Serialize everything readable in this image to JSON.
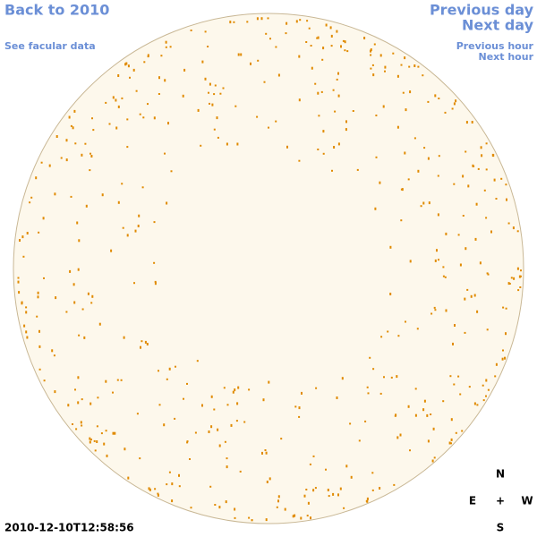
{
  "links": {
    "back": "Back to 2010",
    "facular": "See facular data",
    "previous_day": "Previous day",
    "next_day": "Next day",
    "previous_hour": "Previous hour",
    "next_hour": "Next hour"
  },
  "timestamp": "2010-12-10T12:58:56",
  "compass": {
    "north": "N",
    "east": "E",
    "center": "+",
    "west": "W",
    "south": "S"
  }
}
